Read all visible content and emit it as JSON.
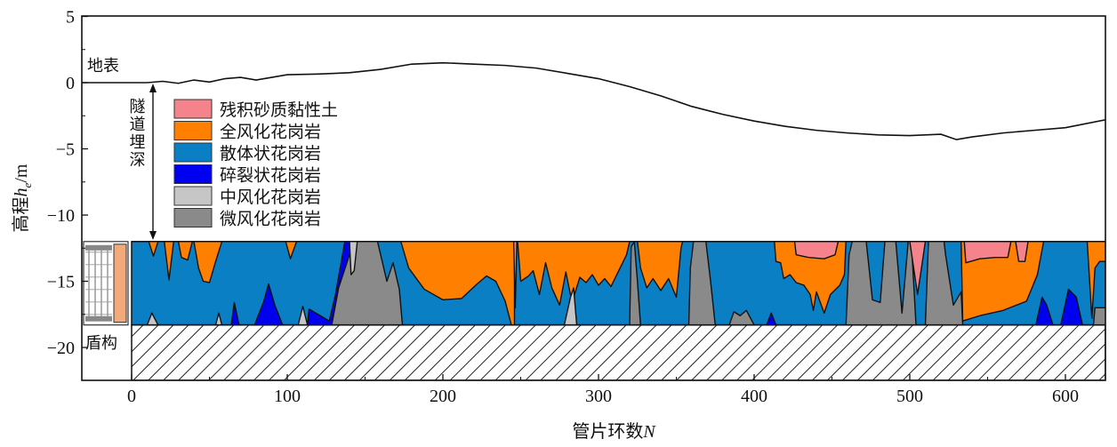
{
  "chart_data": {
    "type": "area",
    "title": "",
    "xlabel": "管片环数",
    "xlabel_var": "N",
    "ylabel": "高程",
    "ylabel_var": "h",
    "ylabel_sub": "e",
    "ylabel_unit": "/m",
    "xlim": [
      -32,
      626
    ],
    "ylim": [
      -22.5,
      5
    ],
    "xticks": [
      0,
      100,
      200,
      300,
      400,
      500,
      600
    ],
    "yticks": [
      5,
      0,
      -5,
      -10,
      -15,
      -20
    ],
    "ytick_labels": [
      "5",
      "0",
      "−5",
      "−10",
      "−15",
      "−20"
    ],
    "annotations": {
      "surface": "地表",
      "depth": "隧道埋深",
      "shield": "盾构"
    },
    "tunnel": {
      "top": -12,
      "bottom": -18.3
    },
    "colors": {
      "pink": "#f4838b",
      "orange": "#ff8000",
      "blue": "#0b7fc3",
      "darkblue": "#0000f0",
      "lightgray": "#c6c6c6",
      "gray": "#8a8a8a",
      "peach": "#f2aa7a"
    },
    "legend": [
      {
        "label": "残积砂质黏性土",
        "color": "#f4838b"
      },
      {
        "label": "全风化花岗岩",
        "color": "#ff8000"
      },
      {
        "label": "散体状花岗岩",
        "color": "#0b7fc3"
      },
      {
        "label": "碎裂状花岗岩",
        "color": "#0000f0"
      },
      {
        "label": "中风化花岗岩",
        "color": "#c6c6c6"
      },
      {
        "label": "微风化花岗岩",
        "color": "#8a8a8a"
      }
    ],
    "surface": [
      [
        -32,
        0
      ],
      [
        0,
        0
      ],
      [
        10,
        0
      ],
      [
        20,
        0.1
      ],
      [
        30,
        -0.05
      ],
      [
        40,
        0.2
      ],
      [
        50,
        0.05
      ],
      [
        60,
        0.3
      ],
      [
        70,
        0.4
      ],
      [
        80,
        0.2
      ],
      [
        90,
        0.4
      ],
      [
        100,
        0.6
      ],
      [
        120,
        0.65
      ],
      [
        140,
        0.75
      ],
      [
        160,
        1.0
      ],
      [
        180,
        1.4
      ],
      [
        200,
        1.5
      ],
      [
        220,
        1.4
      ],
      [
        240,
        1.3
      ],
      [
        260,
        1.1
      ],
      [
        280,
        0.7
      ],
      [
        300,
        0.3
      ],
      [
        320,
        -0.3
      ],
      [
        340,
        -1.0
      ],
      [
        360,
        -1.8
      ],
      [
        380,
        -2.4
      ],
      [
        400,
        -2.9
      ],
      [
        420,
        -3.3
      ],
      [
        440,
        -3.6
      ],
      [
        460,
        -3.8
      ],
      [
        480,
        -3.95
      ],
      [
        500,
        -4.0
      ],
      [
        520,
        -3.9
      ],
      [
        530,
        -4.3
      ],
      [
        540,
        -4.1
      ],
      [
        560,
        -3.8
      ],
      [
        580,
        -3.6
      ],
      [
        600,
        -3.4
      ],
      [
        626,
        -2.8
      ]
    ],
    "strata": [
      {
        "layer": 1,
        "points": [
          [
            11,
            -12
          ],
          [
            14,
            -13.1
          ],
          [
            17,
            -12
          ]
        ]
      },
      {
        "layer": 1,
        "points": [
          [
            21,
            -12
          ],
          [
            24,
            -14.9
          ],
          [
            27,
            -12
          ]
        ]
      },
      {
        "layer": 1,
        "points": [
          [
            30,
            -12
          ],
          [
            32,
            -13.2
          ],
          [
            36,
            -13.4
          ],
          [
            39,
            -12
          ]
        ]
      },
      {
        "layer": 1,
        "points": [
          [
            40,
            -12
          ],
          [
            43,
            -14
          ],
          [
            46,
            -15
          ],
          [
            50,
            -15.1
          ],
          [
            54,
            -13.5
          ],
          [
            58,
            -12
          ]
        ]
      },
      {
        "layer": 1,
        "points": [
          [
            99,
            -12
          ],
          [
            102,
            -13.3
          ],
          [
            106,
            -12
          ]
        ]
      },
      {
        "layer": 4,
        "points": [
          [
            10,
            -18.3
          ],
          [
            13,
            -17.4
          ],
          [
            17,
            -18.3
          ]
        ]
      },
      {
        "layer": 4,
        "points": [
          [
            54,
            -18.3
          ],
          [
            56,
            -17.4
          ],
          [
            58,
            -18.3
          ]
        ]
      },
      {
        "layer": 4,
        "points": [
          [
            107,
            -18.3
          ],
          [
            110,
            -16.9
          ],
          [
            113,
            -18.3
          ]
        ]
      },
      {
        "layer": 3,
        "points": [
          [
            64,
            -18.3
          ],
          [
            66,
            -16.6
          ],
          [
            69,
            -18.3
          ]
        ]
      },
      {
        "layer": 3,
        "points": [
          [
            79,
            -18.3
          ],
          [
            85,
            -16.5
          ],
          [
            88,
            -15.2
          ],
          [
            92,
            -16.8
          ],
          [
            97,
            -18.3
          ]
        ]
      },
      {
        "layer": 3,
        "points": [
          [
            113,
            -18.3
          ],
          [
            114,
            -17.1
          ],
          [
            127,
            -18
          ],
          [
            131,
            -16
          ],
          [
            137,
            -12
          ],
          [
            141,
            -12
          ],
          [
            140,
            -14
          ],
          [
            134,
            -15
          ],
          [
            128.6,
            -18.3
          ]
        ]
      },
      {
        "layer": 5,
        "points": [
          [
            128.6,
            -18.3
          ],
          [
            133,
            -15.5
          ],
          [
            140,
            -13
          ],
          [
            142,
            -12
          ],
          [
            158,
            -12
          ],
          [
            164,
            -15
          ],
          [
            168,
            -13.6
          ],
          [
            172,
            -15.6
          ],
          [
            174,
            -18.3
          ]
        ]
      },
      {
        "layer": 4,
        "points": [
          [
            140,
            -12
          ],
          [
            145,
            -12
          ],
          [
            143,
            -14.2
          ],
          [
            141,
            -14.5
          ]
        ]
      },
      {
        "layer": 1,
        "points": [
          [
            173,
            -12
          ],
          [
            178,
            -14
          ],
          [
            188,
            -15.6
          ],
          [
            200,
            -16.4
          ],
          [
            212,
            -16.3
          ],
          [
            222,
            -15.2
          ],
          [
            228,
            -14.6
          ],
          [
            234,
            -15
          ],
          [
            240,
            -16.5
          ],
          [
            244,
            -18.3
          ],
          [
            246,
            -18.3
          ],
          [
            246,
            -12
          ]
        ]
      },
      {
        "layer": 0,
        "points": [
          [
            245.5,
            -12
          ],
          [
            246.5,
            -17
          ],
          [
            247.5,
            -12
          ]
        ]
      },
      {
        "layer": 1,
        "points": [
          [
            248,
            -12
          ],
          [
            250,
            -15
          ],
          [
            255,
            -14.6
          ],
          [
            258,
            -14.2
          ],
          [
            262,
            -16
          ],
          [
            266,
            -13.6
          ],
          [
            270,
            -15.5
          ],
          [
            275,
            -16.8
          ],
          [
            279,
            -14.3
          ],
          [
            283,
            -16.6
          ],
          [
            288,
            -14.7
          ],
          [
            292,
            -15.1
          ],
          [
            296,
            -14.5
          ],
          [
            300,
            -15.3
          ],
          [
            304,
            -14.8
          ],
          [
            308,
            -15.4
          ],
          [
            313,
            -14.2
          ],
          [
            318,
            -13
          ],
          [
            320,
            -12
          ]
        ]
      },
      {
        "layer": 4,
        "points": [
          [
            278,
            -18.3
          ],
          [
            282,
            -16.2
          ],
          [
            284,
            -15.5
          ],
          [
            286,
            -18.3
          ]
        ]
      },
      {
        "layer": 5,
        "points": [
          [
            320,
            -18.3
          ],
          [
            321,
            -12.4
          ],
          [
            323,
            -12
          ],
          [
            325,
            -15
          ],
          [
            327,
            -18.3
          ]
        ]
      },
      {
        "layer": 1,
        "points": [
          [
            325,
            -12
          ],
          [
            327,
            -14
          ],
          [
            331,
            -15.5
          ],
          [
            335,
            -14.8
          ],
          [
            340,
            -15.7
          ],
          [
            345,
            -14.8
          ],
          [
            350,
            -16.2
          ],
          [
            353,
            -12.5
          ],
          [
            354,
            -12
          ]
        ]
      },
      {
        "layer": 5,
        "points": [
          [
            358,
            -18.3
          ],
          [
            359,
            -14
          ],
          [
            361,
            -12
          ],
          [
            369,
            -12
          ],
          [
            372,
            -15
          ],
          [
            375,
            -18.3
          ]
        ]
      },
      {
        "layer": 5,
        "points": [
          [
            384,
            -18.3
          ],
          [
            387,
            -17.3
          ],
          [
            391,
            -17.6
          ],
          [
            395,
            -17.2
          ],
          [
            400,
            -18.3
          ]
        ]
      },
      {
        "layer": 3,
        "points": [
          [
            408,
            -18.3
          ],
          [
            411,
            -17.4
          ],
          [
            414,
            -18.3
          ]
        ]
      },
      {
        "layer": 1,
        "points": [
          [
            413,
            -12
          ],
          [
            414,
            -13.5
          ],
          [
            417,
            -13.6
          ],
          [
            419,
            -14.8
          ],
          [
            423,
            -14.5
          ],
          [
            427,
            -15.1
          ],
          [
            432,
            -15.3
          ],
          [
            436,
            -16
          ],
          [
            438,
            -17.2
          ],
          [
            440,
            -15.8
          ],
          [
            445,
            -17.4
          ],
          [
            449,
            -16
          ],
          [
            455,
            -15.3
          ],
          [
            458,
            -14.5
          ],
          [
            459,
            -12
          ]
        ]
      },
      {
        "layer": 0,
        "points": [
          [
            426,
            -12
          ],
          [
            427,
            -13
          ],
          [
            435,
            -13.2
          ],
          [
            445,
            -13.3
          ],
          [
            452,
            -13
          ],
          [
            454,
            -12
          ]
        ]
      },
      {
        "layer": 5,
        "points": [
          [
            459,
            -18.3
          ],
          [
            461,
            -13
          ],
          [
            463,
            -12
          ],
          [
            472,
            -12
          ],
          [
            476,
            -16.4
          ],
          [
            481,
            -16.6
          ],
          [
            484,
            -12
          ],
          [
            491,
            -12
          ],
          [
            495,
            -17.4
          ],
          [
            499,
            -12
          ],
          [
            501,
            -12
          ],
          [
            504,
            -18.3
          ]
        ]
      },
      {
        "layer": 0,
        "points": [
          [
            500,
            -12
          ],
          [
            505,
            -16
          ],
          [
            510,
            -12
          ]
        ]
      },
      {
        "layer": 5,
        "points": [
          [
            510,
            -18.3
          ],
          [
            512,
            -12
          ],
          [
            522,
            -12
          ],
          [
            523,
            -13
          ],
          [
            528,
            -16.8
          ],
          [
            533,
            -15.8
          ],
          [
            534,
            -18.3
          ]
        ]
      },
      {
        "layer": 1,
        "points": [
          [
            533,
            -12
          ],
          [
            534,
            -18
          ],
          [
            545,
            -17.6
          ],
          [
            560,
            -17.2
          ],
          [
            575,
            -16.5
          ],
          [
            582,
            -14.5
          ],
          [
            586,
            -12
          ]
        ]
      },
      {
        "layer": 0,
        "points": [
          [
            535,
            -12
          ],
          [
            536,
            -13.6
          ],
          [
            545,
            -13.3
          ],
          [
            555,
            -13.2
          ],
          [
            563,
            -13.2
          ],
          [
            565,
            -12
          ]
        ]
      },
      {
        "layer": 0,
        "points": [
          [
            568,
            -12
          ],
          [
            570,
            -13.5
          ],
          [
            574,
            -13.5
          ],
          [
            576,
            -12
          ]
        ]
      },
      {
        "layer": 3,
        "points": [
          [
            581,
            -18.3
          ],
          [
            585,
            -16.2
          ],
          [
            588,
            -16.8
          ],
          [
            592,
            -18.3
          ]
        ]
      },
      {
        "layer": 3,
        "points": [
          [
            597,
            -18.3
          ],
          [
            602,
            -15.6
          ],
          [
            607,
            -16.2
          ],
          [
            611,
            -18.3
          ]
        ]
      },
      {
        "layer": 1,
        "points": [
          [
            614,
            -12
          ],
          [
            617,
            -17.8
          ],
          [
            619,
            -14
          ],
          [
            622,
            -13.5
          ],
          [
            626,
            -13.5
          ],
          [
            626,
            -12
          ]
        ]
      },
      {
        "layer": 5,
        "points": [
          [
            618,
            -18.3
          ],
          [
            619,
            -17
          ],
          [
            626,
            -17
          ],
          [
            626,
            -18.3
          ]
        ]
      }
    ]
  }
}
